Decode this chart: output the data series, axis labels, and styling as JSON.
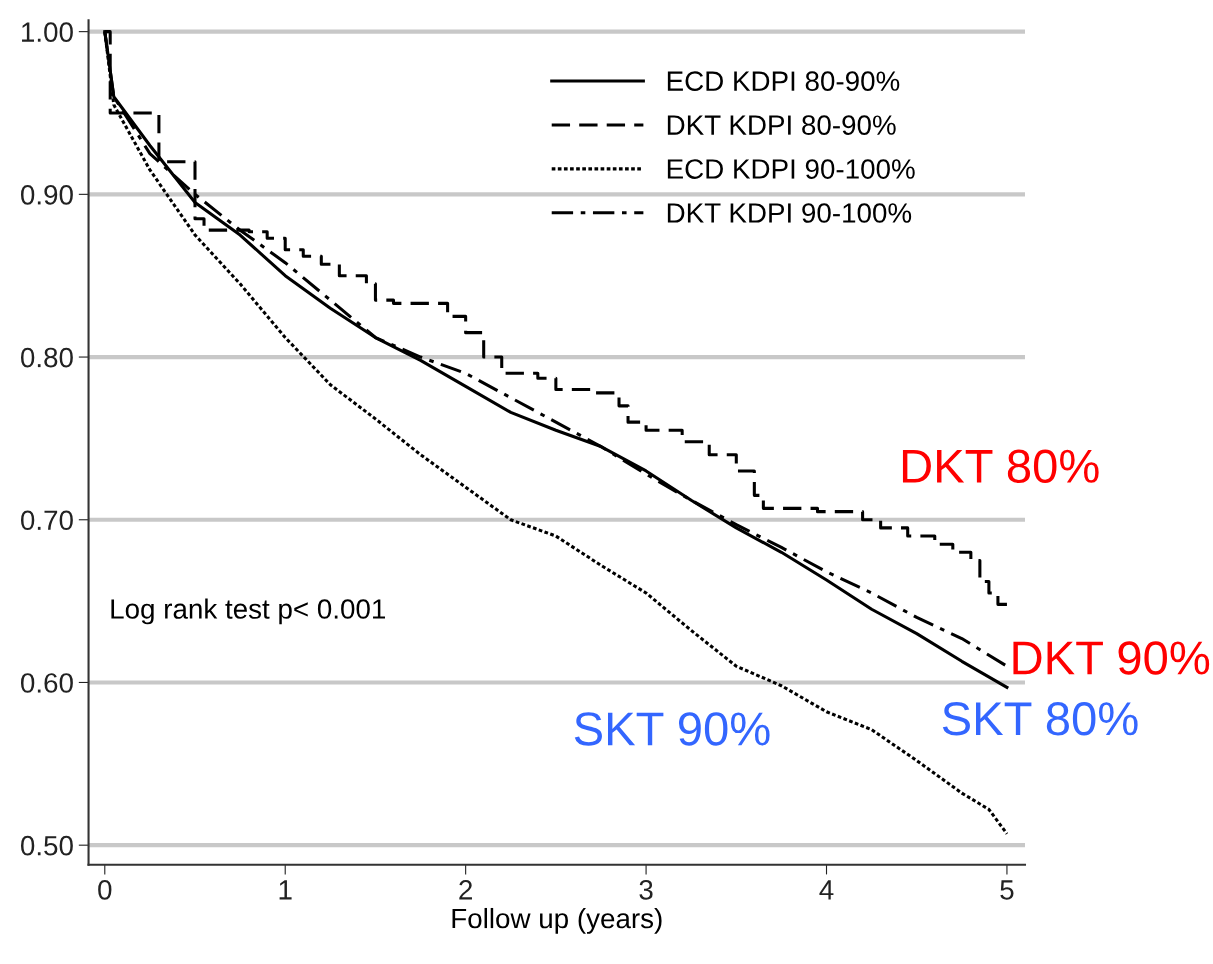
{
  "chart_data": {
    "type": "line",
    "xlabel": "Follow up (years)",
    "xlim": [
      -0.09,
      5.1
    ],
    "xticks": [
      0,
      1,
      2,
      3,
      4,
      5
    ],
    "ylim": [
      0.488,
      1.007
    ],
    "yticks": [
      {
        "value": 0.5,
        "label": "0.50"
      },
      {
        "value": 0.6,
        "label": "0.60"
      },
      {
        "value": 0.7,
        "label": "0.70"
      },
      {
        "value": 0.8,
        "label": "0.80"
      },
      {
        "value": 0.9,
        "label": "0.90"
      },
      {
        "value": 1.0,
        "label": "1.00"
      }
    ],
    "grid": "y",
    "legend": "top right",
    "series": [
      {
        "name": "ECD KDPI 80-90%",
        "color": "#000000",
        "line_style": "solid",
        "x": [
          0,
          0.05,
          0.25,
          0.5,
          0.75,
          1,
          1.25,
          1.5,
          1.75,
          2,
          2.25,
          2.5,
          2.75,
          3,
          3.25,
          3.5,
          3.75,
          4,
          4.25,
          4.5,
          4.75,
          5
        ],
        "values": [
          1.0,
          0.96,
          0.93,
          0.895,
          0.875,
          0.85,
          0.83,
          0.812,
          0.798,
          0.782,
          0.766,
          0.755,
          0.745,
          0.73,
          0.712,
          0.695,
          0.68,
          0.663,
          0.645,
          0.63,
          0.613,
          0.597
        ]
      },
      {
        "name": "DKT KDPI 80-90%",
        "color": "#000000",
        "type": "step",
        "line_style": "dashed",
        "x": [
          0,
          0.03,
          0.3,
          0.5,
          0.55,
          0.8,
          0.9,
          1.0,
          1.1,
          1.2,
          1.3,
          1.45,
          1.5,
          1.6,
          1.85,
          1.9,
          2.0,
          2.1,
          2.2,
          2.4,
          2.5,
          2.7,
          2.85,
          2.9,
          3.0,
          3.2,
          3.35,
          3.5,
          3.6,
          3.65,
          3.95,
          4.2,
          4.3,
          4.45,
          4.6,
          4.7,
          4.8,
          4.85,
          4.9,
          4.95,
          5.0
        ],
        "values": [
          1.0,
          0.95,
          0.92,
          0.885,
          0.878,
          0.877,
          0.873,
          0.866,
          0.862,
          0.857,
          0.85,
          0.845,
          0.835,
          0.833,
          0.833,
          0.825,
          0.815,
          0.8,
          0.79,
          0.787,
          0.78,
          0.778,
          0.77,
          0.76,
          0.755,
          0.748,
          0.74,
          0.73,
          0.715,
          0.707,
          0.705,
          0.7,
          0.695,
          0.69,
          0.685,
          0.68,
          0.675,
          0.662,
          0.655,
          0.648,
          0.648
        ]
      },
      {
        "name": "ECD KDPI 90-100%",
        "color": "#000000",
        "line_style": "dotted",
        "x": [
          0,
          0.05,
          0.25,
          0.5,
          0.75,
          1,
          1.25,
          1.5,
          1.75,
          2,
          2.25,
          2.5,
          2.75,
          3,
          3.25,
          3.5,
          3.75,
          4,
          4.25,
          4.5,
          4.75,
          4.9,
          5
        ],
        "values": [
          1.0,
          0.955,
          0.915,
          0.875,
          0.845,
          0.812,
          0.783,
          0.762,
          0.74,
          0.72,
          0.7,
          0.69,
          0.672,
          0.655,
          0.632,
          0.61,
          0.598,
          0.582,
          0.571,
          0.552,
          0.532,
          0.522,
          0.507
        ]
      },
      {
        "name": "DKT KDPI 90-100%",
        "color": "#000000",
        "line_style": "dashdot",
        "x": [
          0,
          0.05,
          0.25,
          0.5,
          0.75,
          1,
          1.25,
          1.5,
          1.75,
          2,
          2.25,
          2.5,
          2.75,
          3,
          3.25,
          3.5,
          3.75,
          4,
          4.25,
          4.5,
          4.75,
          5
        ],
        "values": [
          1.0,
          0.96,
          0.925,
          0.9,
          0.878,
          0.858,
          0.835,
          0.812,
          0.8,
          0.79,
          0.775,
          0.76,
          0.745,
          0.728,
          0.712,
          0.697,
          0.683,
          0.668,
          0.655,
          0.64,
          0.627,
          0.61
        ]
      }
    ],
    "annotations": [
      "Log rank test p< 0.001",
      "DKT 80%",
      "DKT 90%",
      "SKT 80%",
      "SKT 90%"
    ]
  }
}
